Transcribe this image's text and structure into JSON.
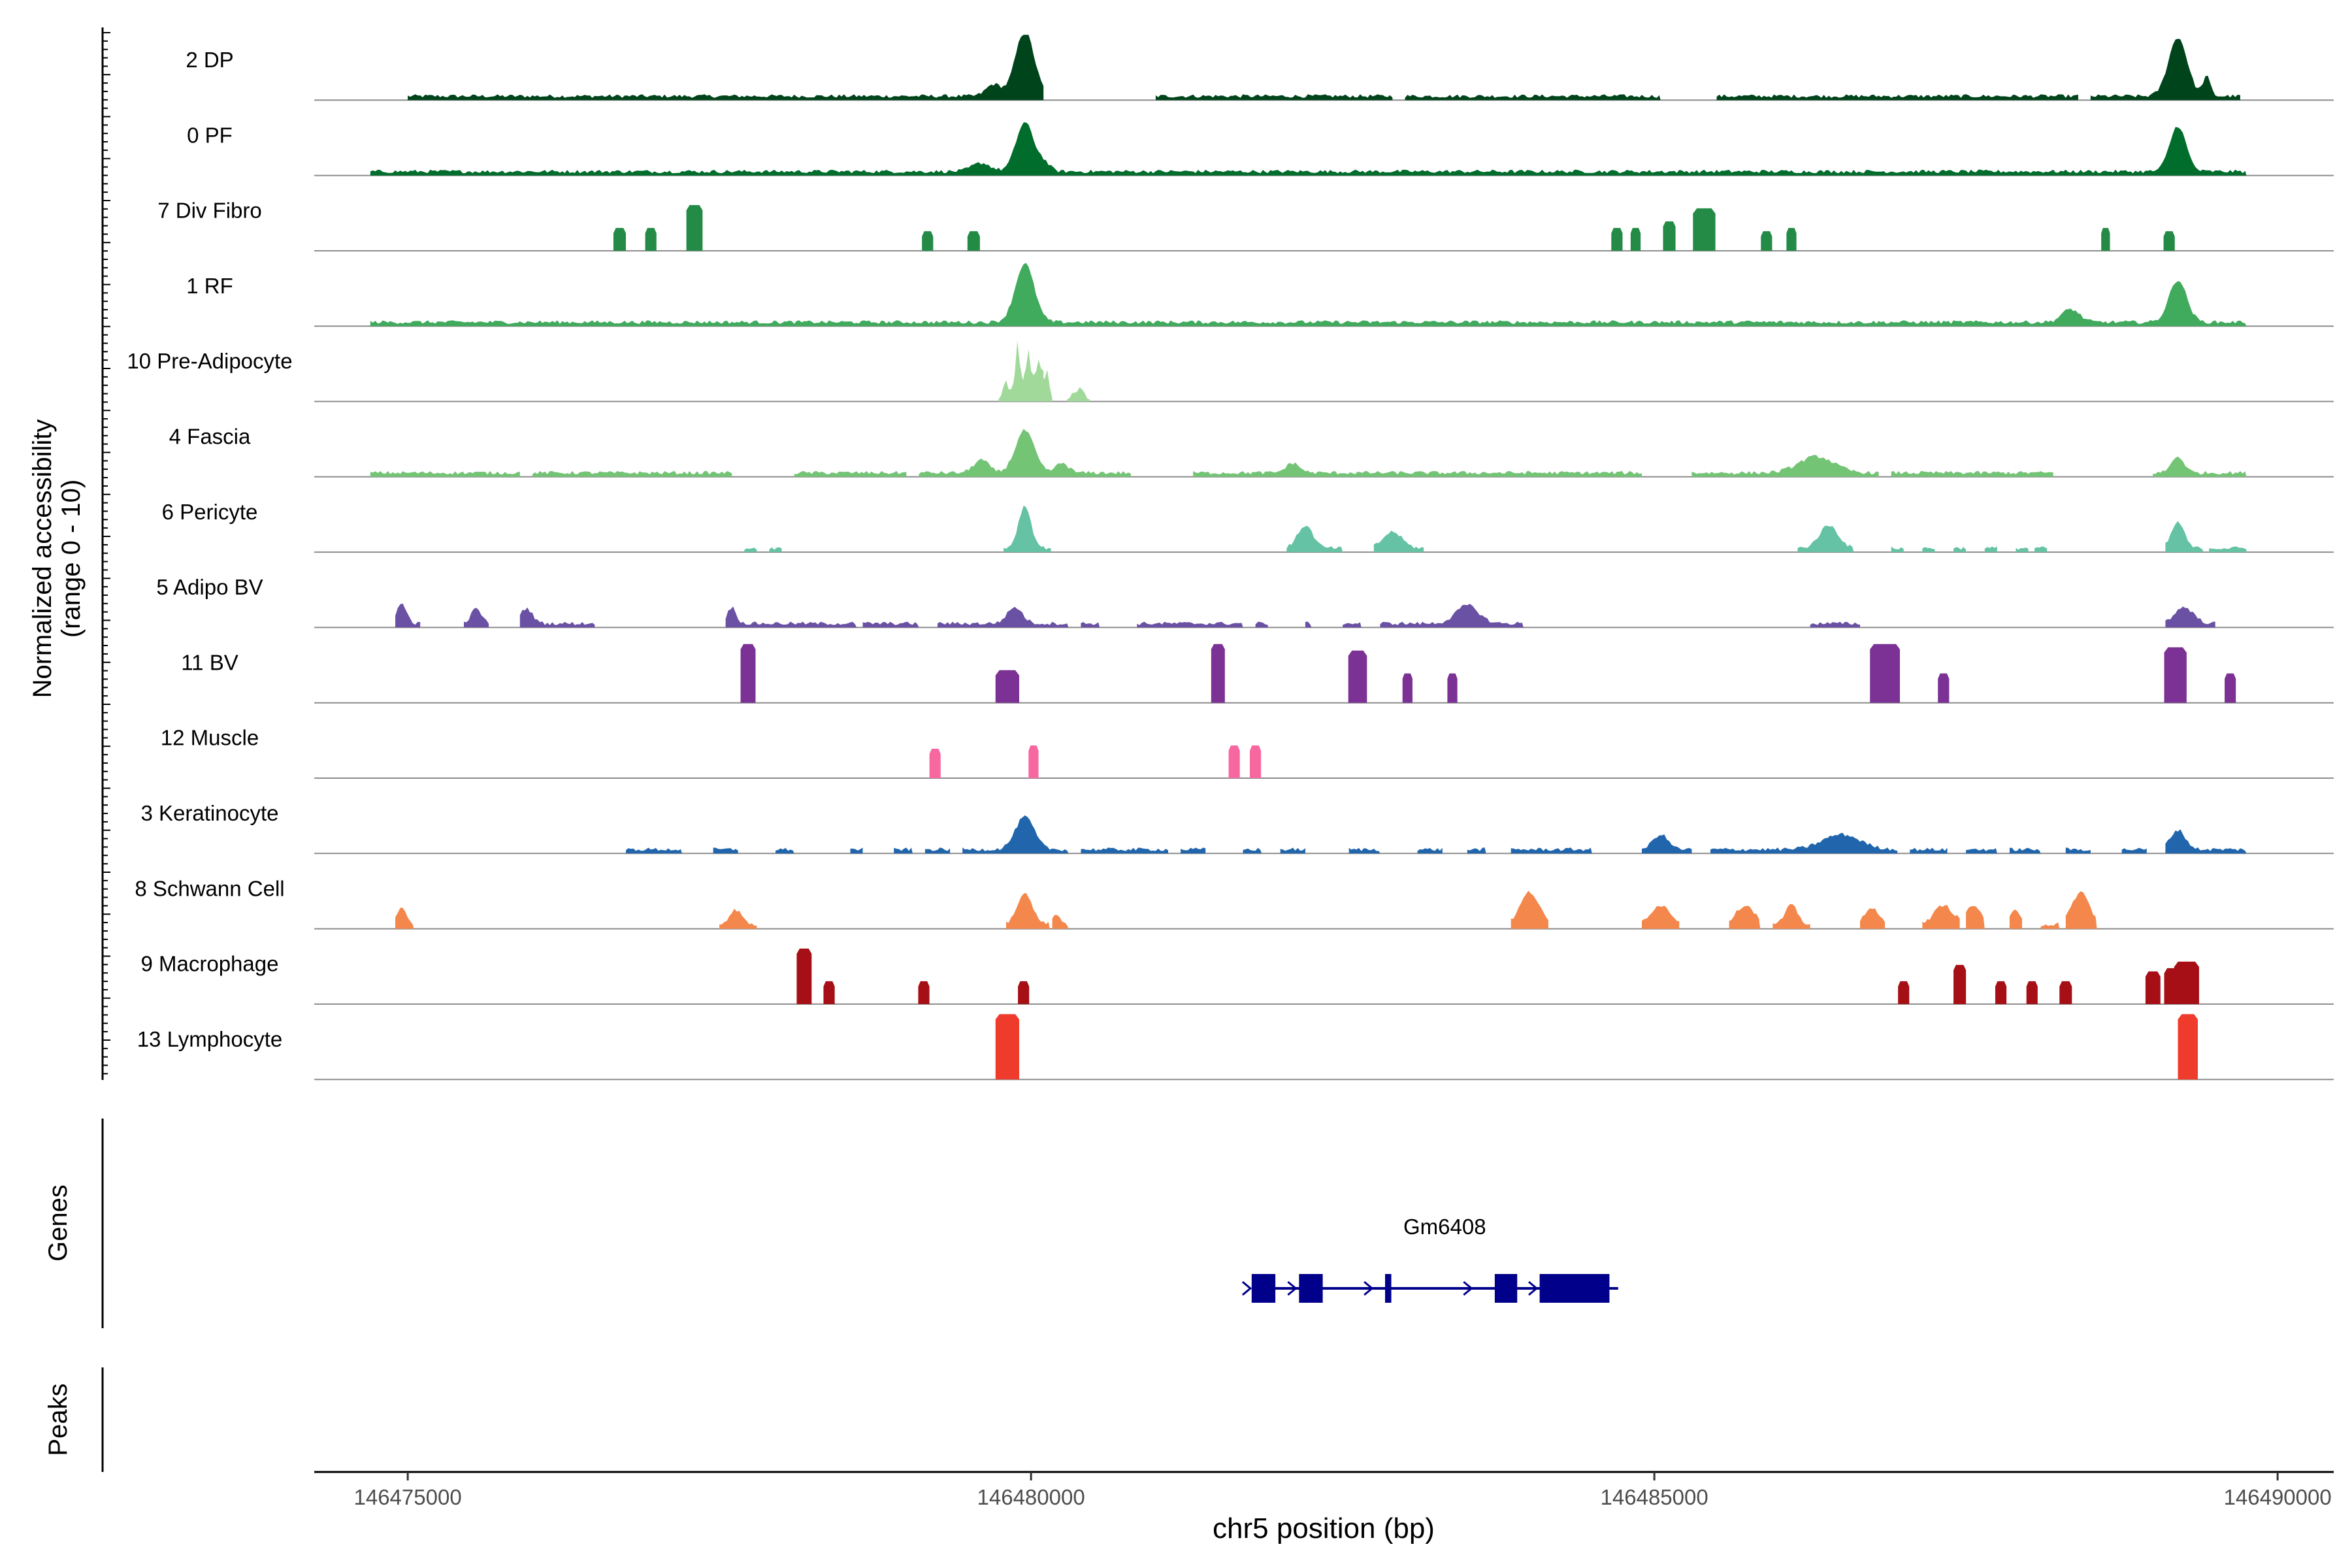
{
  "chart_data": {
    "type": "area",
    "title": "",
    "y_axis_title_line1": "Normalized accessibility",
    "y_axis_title_line2": "(range 0 - 10)",
    "ylim": [
      0,
      10
    ],
    "x_axis_title": "chr5 position (bp)",
    "xlim": [
      146474250,
      146490450
    ],
    "x_ticks": [
      146475000,
      146480000,
      146485000,
      146490000
    ],
    "x_tick_labels": [
      "146475000",
      "146480000",
      "146485000",
      "146490000"
    ],
    "tracks": [
      {
        "name": "2 DP",
        "color": "#00441b",
        "style": "dense",
        "peaks": [
          [
            146479950,
            10,
            150
          ],
          [
            146489200,
            9,
            150
          ],
          [
            146489430,
            3,
            60
          ],
          [
            146479700,
            1.8,
            120
          ],
          [
            146480200,
            1.5,
            80
          ]
        ],
        "segments": [
          [
            146475000,
            146480100
          ],
          [
            146481000,
            146482900
          ],
          [
            146483000,
            146485050
          ],
          [
            146485500,
            146488400
          ],
          [
            146488500,
            146489700
          ]
        ]
      },
      {
        "name": "0 PF",
        "color": "#006d2c",
        "style": "dense",
        "peaks": [
          [
            146479950,
            7.5,
            140
          ],
          [
            146489200,
            7,
            130
          ],
          [
            146479600,
            1.3,
            150
          ],
          [
            146480100,
            1.3,
            100
          ]
        ],
        "segments": [
          [
            146474700,
            146489750
          ]
        ]
      },
      {
        "name": "7 Div Fibro",
        "color": "#238b45",
        "style": "blocks",
        "blocks": [
          [
            146476700,
            100,
            3.5
          ],
          [
            146476950,
            90,
            3.5
          ],
          [
            146477300,
            130,
            7
          ],
          [
            146479170,
            90,
            3
          ],
          [
            146479540,
            100,
            3
          ],
          [
            146484700,
            90,
            3.5
          ],
          [
            146484850,
            80,
            3.5
          ],
          [
            146485120,
            100,
            4.5
          ],
          [
            146485400,
            180,
            6.5
          ],
          [
            146485900,
            90,
            3
          ],
          [
            146486100,
            80,
            3.5
          ],
          [
            146488620,
            70,
            3.5
          ],
          [
            146489130,
            90,
            3
          ]
        ]
      },
      {
        "name": "1 RF",
        "color": "#41ab5d",
        "style": "dense",
        "peaks": [
          [
            146479950,
            9,
            150
          ],
          [
            146489200,
            6.5,
            140
          ],
          [
            146488340,
            2,
            140
          ]
        ],
        "segments": [
          [
            146474700,
            146489750
          ]
        ]
      },
      {
        "name": "10 Pre-Adipocyte",
        "color": "#a1d99b",
        "style": "spiky",
        "peaks": [
          [
            146479800,
            3.5,
            60
          ],
          [
            146479900,
            10,
            50
          ],
          [
            146479980,
            8,
            40
          ],
          [
            146480050,
            7.5,
            50
          ],
          [
            146480120,
            5.5,
            50
          ],
          [
            146480380,
            2.5,
            90
          ]
        ]
      },
      {
        "name": "4 Fascia",
        "color": "#74c476",
        "style": "dense",
        "peaks": [
          [
            146479950,
            6.5,
            150
          ],
          [
            146479600,
            2,
            120
          ],
          [
            146480250,
            1.5,
            100
          ],
          [
            146482100,
            1.5,
            110
          ],
          [
            146486300,
            2.5,
            280
          ],
          [
            146489200,
            2.5,
            100
          ]
        ],
        "segments": [
          [
            146474700,
            146475900
          ],
          [
            146476000,
            146477600
          ],
          [
            146478100,
            146479000
          ],
          [
            146479100,
            146480800
          ],
          [
            146481300,
            146484900
          ],
          [
            146485300,
            146486800
          ],
          [
            146486900,
            146488200
          ],
          [
            146489000,
            146489750
          ]
        ]
      },
      {
        "name": "6 Pericyte",
        "color": "#66c2a4",
        "style": "dense",
        "peaks": [
          [
            146479950,
            6.5,
            100
          ],
          [
            146482200,
            3.5,
            120
          ],
          [
            146482900,
            2.5,
            150
          ],
          [
            146486400,
            3.5,
            150
          ],
          [
            146489200,
            4,
            100
          ]
        ],
        "segments": [
          [
            146477700,
            146477800
          ],
          [
            146477900,
            146478000
          ],
          [
            146479780,
            146480160
          ],
          [
            146482050,
            146482500
          ],
          [
            146482750,
            146483150
          ],
          [
            146486150,
            146486600
          ],
          [
            146486900,
            146487000
          ],
          [
            146487150,
            146487250
          ],
          [
            146487400,
            146487500
          ],
          [
            146487650,
            146487750
          ],
          [
            146487900,
            146488000
          ],
          [
            146488050,
            146488150
          ],
          [
            146489100,
            146489400
          ],
          [
            146489450,
            146489750
          ]
        ]
      },
      {
        "name": "5 Adipo BV",
        "color": "#6a51a3",
        "style": "dense",
        "peaks": [
          [
            146474950,
            3,
            80
          ],
          [
            146475550,
            2.3,
            80
          ],
          [
            146475950,
            2.3,
            100
          ],
          [
            146477600,
            2.5,
            70
          ],
          [
            146479870,
            2.5,
            120
          ],
          [
            146483500,
            2.8,
            180
          ],
          [
            146489250,
            2.5,
            150
          ]
        ],
        "segments": [
          [
            146474900,
            146475100
          ],
          [
            146475450,
            146475650
          ],
          [
            146475900,
            146476500
          ],
          [
            146477550,
            146478600
          ],
          [
            146478650,
            146479100
          ],
          [
            146479250,
            146480300
          ],
          [
            146480400,
            146480550
          ],
          [
            146480850,
            146481700
          ],
          [
            146481800,
            146481900
          ],
          [
            146482200,
            146482250
          ],
          [
            146482500,
            146482650
          ],
          [
            146482800,
            146483950
          ],
          [
            146486250,
            146486650
          ],
          [
            146489100,
            146489500
          ]
        ]
      },
      {
        "name": "11 BV",
        "color": "#7b3294",
        "style": "blocks",
        "blocks": [
          [
            146477730,
            120,
            9
          ],
          [
            146479810,
            190,
            5
          ],
          [
            146481500,
            110,
            9
          ],
          [
            146482620,
            150,
            8
          ],
          [
            146483020,
            80,
            4.5
          ],
          [
            146483380,
            80,
            4.5
          ],
          [
            146486850,
            240,
            9
          ],
          [
            146487320,
            90,
            4.5
          ],
          [
            146489180,
            180,
            8.5
          ],
          [
            146489620,
            90,
            4.5
          ]
        ]
      },
      {
        "name": "12 Muscle",
        "color": "#f768a1",
        "style": "blocks",
        "blocks": [
          [
            146479230,
            90,
            4.5
          ],
          [
            146480020,
            80,
            5
          ],
          [
            146481630,
            90,
            5
          ],
          [
            146481800,
            90,
            5
          ]
        ]
      },
      {
        "name": "3 Keratinocyte",
        "color": "#2166ac",
        "style": "dense",
        "peaks": [
          [
            146479950,
            5,
            150
          ],
          [
            146485050,
            2.3,
            120
          ],
          [
            146486500,
            2.3,
            300
          ],
          [
            146489200,
            3,
            120
          ]
        ],
        "segments": [
          [
            146476750,
            146477200
          ],
          [
            146477450,
            146477650
          ],
          [
            146477950,
            146478100
          ],
          [
            146478550,
            146478650
          ],
          [
            146478900,
            146479050
          ],
          [
            146479150,
            146479350
          ],
          [
            146479450,
            146480300
          ],
          [
            146480400,
            146481100
          ],
          [
            146481200,
            146481400
          ],
          [
            146481700,
            146481850
          ],
          [
            146482000,
            146482200
          ],
          [
            146482550,
            146482800
          ],
          [
            146483100,
            146483300
          ],
          [
            146483500,
            146483650
          ],
          [
            146483850,
            146484500
          ],
          [
            146484900,
            146485300
          ],
          [
            146485450,
            146486950
          ],
          [
            146487050,
            146487350
          ],
          [
            146487500,
            146487750
          ],
          [
            146487850,
            146488100
          ],
          [
            146488300,
            146488500
          ],
          [
            146488750,
            146488950
          ],
          [
            146489100,
            146489750
          ]
        ]
      },
      {
        "name": "8 Schwann Cell",
        "color": "#f4874b",
        "style": "dense",
        "peaks": [
          [
            146474950,
            2.5,
            80
          ],
          [
            146477630,
            2.3,
            100
          ],
          [
            146479950,
            5,
            120
          ],
          [
            146480200,
            1.5,
            80
          ],
          [
            146484000,
            5,
            150
          ],
          [
            146485050,
            3,
            160
          ],
          [
            146485730,
            3,
            150
          ],
          [
            146486100,
            3,
            100
          ],
          [
            146486750,
            2.5,
            120
          ],
          [
            146487320,
            3,
            150
          ],
          [
            146487560,
            3,
            110
          ],
          [
            146487900,
            2.3,
            80
          ],
          [
            146488420,
            5,
            140
          ]
        ],
        "segments": [
          [
            146474900,
            146475050
          ],
          [
            146477500,
            146477800
          ],
          [
            146479800,
            146480150
          ],
          [
            146480170,
            146480300
          ],
          [
            146483850,
            146484150
          ],
          [
            146484900,
            146485200
          ],
          [
            146485600,
            146485850
          ],
          [
            146485950,
            146486250
          ],
          [
            146486650,
            146486850
          ],
          [
            146487150,
            146487450
          ],
          [
            146487500,
            146487650
          ],
          [
            146487850,
            146487950
          ],
          [
            146488100,
            146488250
          ],
          [
            146488300,
            146488550
          ]
        ]
      },
      {
        "name": "9 Macrophage",
        "color": "#a50f15",
        "style": "blocks",
        "blocks": [
          [
            146478180,
            120,
            8.5
          ],
          [
            146478380,
            90,
            3.5
          ],
          [
            146479140,
            90,
            3.5
          ],
          [
            146479940,
            90,
            3.5
          ],
          [
            146487000,
            90,
            3.5
          ],
          [
            146487450,
            100,
            6
          ],
          [
            146487780,
            90,
            3.5
          ],
          [
            146488030,
            90,
            3.5
          ],
          [
            146488300,
            100,
            3.5
          ],
          [
            146489000,
            120,
            5
          ],
          [
            146489150,
            120,
            5.5
          ],
          [
            146489270,
            200,
            6.5
          ]
        ]
      },
      {
        "name": "13 Lymphocyte",
        "color": "#ef3b2c",
        "style": "blocks",
        "blocks": [
          [
            146479810,
            190,
            10
          ],
          [
            146489280,
            160,
            10
          ]
        ]
      }
    ],
    "genes_title": "Genes",
    "peaks_title": "Peaks",
    "gene": {
      "name": "Gm6408",
      "start": 146481770,
      "end": 146484710,
      "strand": "+",
      "exons": [
        [
          146481770,
          146481960
        ],
        [
          146482150,
          146482340
        ],
        [
          146482840,
          146482890
        ],
        [
          146483720,
          146483900
        ],
        [
          146484080,
          146484640
        ]
      ]
    }
  }
}
